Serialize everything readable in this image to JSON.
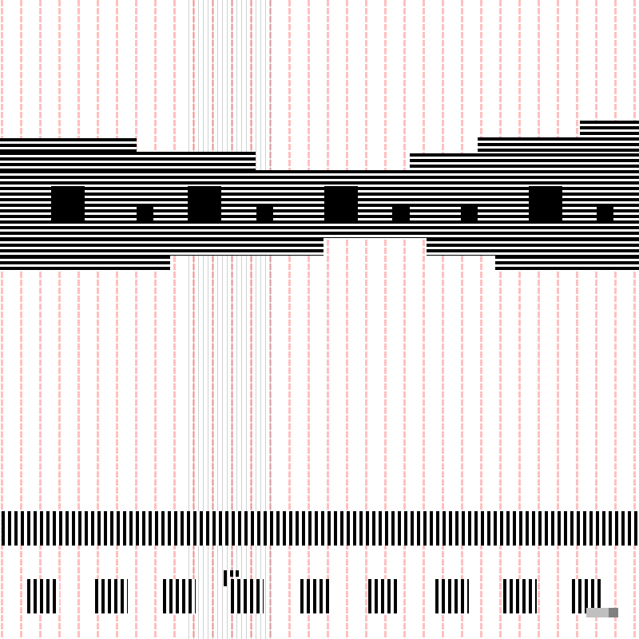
{
  "colors": {
    "grid": "#ffc0c0",
    "stripe": "#000000",
    "background": "#ffffff",
    "swatch_light": "#c0c0c0",
    "swatch_dark": "#808080"
  }
}
